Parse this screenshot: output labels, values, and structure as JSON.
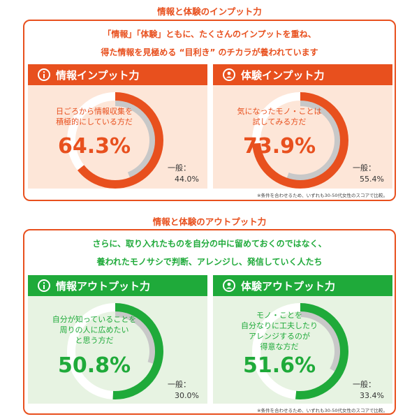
{
  "colors": {
    "orange": "#e8501e",
    "orange_bg": "#fde6d8",
    "green": "#1faa3a",
    "green_bg": "#e7f3e2",
    "gray_arc": "#c8c8c8"
  },
  "input_section": {
    "title": "情報と体験のインプット力",
    "intro_line1": "「情報」「体験」ともに、たくさんのインプットを重ね、",
    "intro_line2": "得た情報を見極める “目利き” のチカラが養われています",
    "note": "※条件を合わせるため、いずれも30-50代女性のスコアで比較。",
    "cards": [
      {
        "title": "情報インプット力",
        "icon": "info-icon",
        "desc_lines": [
          "日ごろから情報収集を",
          "積極的にしている方だ"
        ],
        "percent_label": "64.3%",
        "percent": 64.3,
        "general_label": "一般：",
        "general_value_label": "44.0%",
        "general_value": 44.0
      },
      {
        "title": "体験インプット力",
        "icon": "person-icon",
        "desc_lines": [
          "気になったモノ・ことは",
          "試してみる方だ"
        ],
        "percent_label": "73.9%",
        "percent": 73.9,
        "general_label": "一般：",
        "general_value_label": "55.4%",
        "general_value": 55.4
      }
    ]
  },
  "output_section": {
    "title": "情報と体験のアウトプット力",
    "intro_line1": "さらに、取り入れたものを自分の中に留めておくのではなく、",
    "intro_line2": "養われたモノサシで判断、アレンジし、発信していく人たち",
    "note": "※条件を合わせるため、いずれも30-50代女性のスコアで比較。",
    "cards": [
      {
        "title": "情報アウトプット力",
        "icon": "info-icon",
        "desc_lines": [
          "自分が知っていることを",
          "周りの人に広めたい",
          "と思う方だ"
        ],
        "percent_label": "50.8%",
        "percent": 50.8,
        "general_label": "一般：",
        "general_value_label": "30.0%",
        "general_value": 30.0
      },
      {
        "title": "体験アウトプット力",
        "icon": "person-icon",
        "desc_lines": [
          "モノ・ことを",
          "自分なりに工夫したり",
          "アレンジするのが",
          "得意な方だ"
        ],
        "percent_label": "51.6%",
        "percent": 51.6,
        "general_label": "一般：",
        "general_value_label": "33.4%",
        "general_value": 33.4
      }
    ]
  }
}
